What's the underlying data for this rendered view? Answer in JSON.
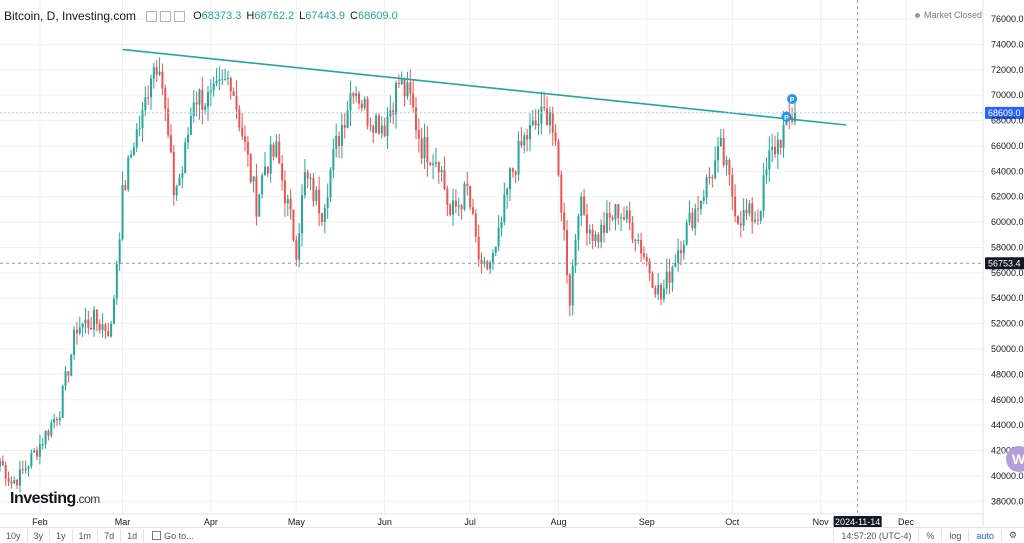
{
  "header": {
    "title": "Bitcoin, D, Investing.com",
    "ohlc": [
      {
        "k": "O",
        "v": "68373.3"
      },
      {
        "k": "H",
        "v": "68762.2"
      },
      {
        "k": "L",
        "v": "67443.9"
      },
      {
        "k": "C",
        "v": "68609.0"
      }
    ],
    "market_status": "Market Closed"
  },
  "logo": {
    "brand": "Investing",
    "suffix": ".com"
  },
  "w_badge": "W",
  "bottom_bar": {
    "ranges": [
      "10y",
      "3y",
      "1y",
      "1m",
      "7d",
      "1d"
    ],
    "goto": "Go to...",
    "time": "14:57:20 (UTC-4)",
    "percent": "%",
    "log": "log",
    "auto": "auto"
  },
  "colors": {
    "up": "#26a69a",
    "down": "#ef5350",
    "trendline": "#26a69a",
    "price_label": "#2962ff",
    "grid": "#eef0f3",
    "axis": "#e0e3eb"
  },
  "icons": [
    "settings-icon",
    "pattern-marker-icon"
  ],
  "chart_data": {
    "type": "candlestick",
    "y_ticks": [
      38000,
      40000,
      42000,
      44000,
      46000,
      48000,
      50000,
      52000,
      54000,
      56000,
      58000,
      60000,
      62000,
      64000,
      66000,
      68000,
      70000,
      72000,
      74000,
      76000
    ],
    "y_tick_labels": [
      "38000.0",
      "40000.0",
      "42000.0",
      "44000.0",
      "46000.0",
      "48000.0",
      "50000.0",
      "52000.0",
      "54000.0",
      "56000.0",
      "58000.0",
      "60000.0",
      "62000.0",
      "64000.0",
      "66000.0",
      "68000.0",
      "70000.0",
      "72000.0",
      "74000.0",
      "76000.0"
    ],
    "ylim": [
      37000,
      77500
    ],
    "x_ticks": [
      "Feb",
      "Mar",
      "Apr",
      "May",
      "Jun",
      "Jul",
      "Aug",
      "Sep",
      "Oct",
      "Nov",
      "Dec"
    ],
    "x_tick_values": [
      "2024-02-01",
      "2024-03-01",
      "2024-04-01",
      "2024-05-01",
      "2024-06-01",
      "2024-07-01",
      "2024-08-01",
      "2024-09-01",
      "2024-10-01",
      "2024-11-01",
      "2024-12-01"
    ],
    "cursor_date": "2024-11-14",
    "x_start": "2024-01-18",
    "x_end": "2024-12-28",
    "last_price": 68609.0,
    "last_price_label": "68609.0",
    "crosshair_price": 56753.4,
    "crosshair_price_label": "56753.4",
    "trendline": {
      "start": {
        "date": "2024-03-01",
        "price": 73600
      },
      "end": {
        "date": "2024-11-10",
        "price": 67650
      }
    },
    "pattern_markers": [
      {
        "date": "2024-10-20",
        "price": 68300,
        "label": "P"
      },
      {
        "date": "2024-10-22",
        "price": 69700,
        "label": "P"
      }
    ],
    "anchors": [
      [
        "2024-01-18",
        41200
      ],
      [
        "2024-01-22",
        39500
      ],
      [
        "2024-01-25",
        40000
      ],
      [
        "2024-02-01",
        42500
      ],
      [
        "2024-02-08",
        45300
      ],
      [
        "2024-02-14",
        51800
      ],
      [
        "2024-02-20",
        52200
      ],
      [
        "2024-02-26",
        51500
      ],
      [
        "2024-02-28",
        57000
      ],
      [
        "2024-03-01",
        62000
      ],
      [
        "2024-03-05",
        66500
      ],
      [
        "2024-03-08",
        68200
      ],
      [
        "2024-03-11",
        72000
      ],
      [
        "2024-03-14",
        73000
      ],
      [
        "2024-03-16",
        68500
      ],
      [
        "2024-03-19",
        62500
      ],
      [
        "2024-03-22",
        64000
      ],
      [
        "2024-03-26",
        70000
      ],
      [
        "2024-04-01",
        69500
      ],
      [
        "2024-04-08",
        71500
      ],
      [
        "2024-04-12",
        67000
      ],
      [
        "2024-04-17",
        61500
      ],
      [
        "2024-04-20",
        64500
      ],
      [
        "2024-04-24",
        65500
      ],
      [
        "2024-05-01",
        58000
      ],
      [
        "2024-05-04",
        63500
      ],
      [
        "2024-05-10",
        61000
      ],
      [
        "2024-05-15",
        66000
      ],
      [
        "2024-05-21",
        71000
      ],
      [
        "2024-05-26",
        68500
      ],
      [
        "2024-06-01",
        67700
      ],
      [
        "2024-06-06",
        71000
      ],
      [
        "2024-06-10",
        69600
      ],
      [
        "2024-06-14",
        66000
      ],
      [
        "2024-06-20",
        65000
      ],
      [
        "2024-06-24",
        60500
      ],
      [
        "2024-06-30",
        62500
      ],
      [
        "2024-07-05",
        55800
      ],
      [
        "2024-07-10",
        57500
      ],
      [
        "2024-07-15",
        63500
      ],
      [
        "2024-07-20",
        66500
      ],
      [
        "2024-07-29",
        69000
      ],
      [
        "2024-08-02",
        61500
      ],
      [
        "2024-08-05",
        54000
      ],
      [
        "2024-08-08",
        61500
      ],
      [
        "2024-08-14",
        58700
      ],
      [
        "2024-08-22",
        61000
      ],
      [
        "2024-08-28",
        59200
      ],
      [
        "2024-09-06",
        54000
      ],
      [
        "2024-09-12",
        58000
      ],
      [
        "2024-09-18",
        61000
      ],
      [
        "2024-09-27",
        65600
      ],
      [
        "2024-10-03",
        60500
      ],
      [
        "2024-10-10",
        60500
      ],
      [
        "2024-10-14",
        65000
      ],
      [
        "2024-10-21",
        68000
      ],
      [
        "2024-10-23",
        68609
      ]
    ]
  }
}
